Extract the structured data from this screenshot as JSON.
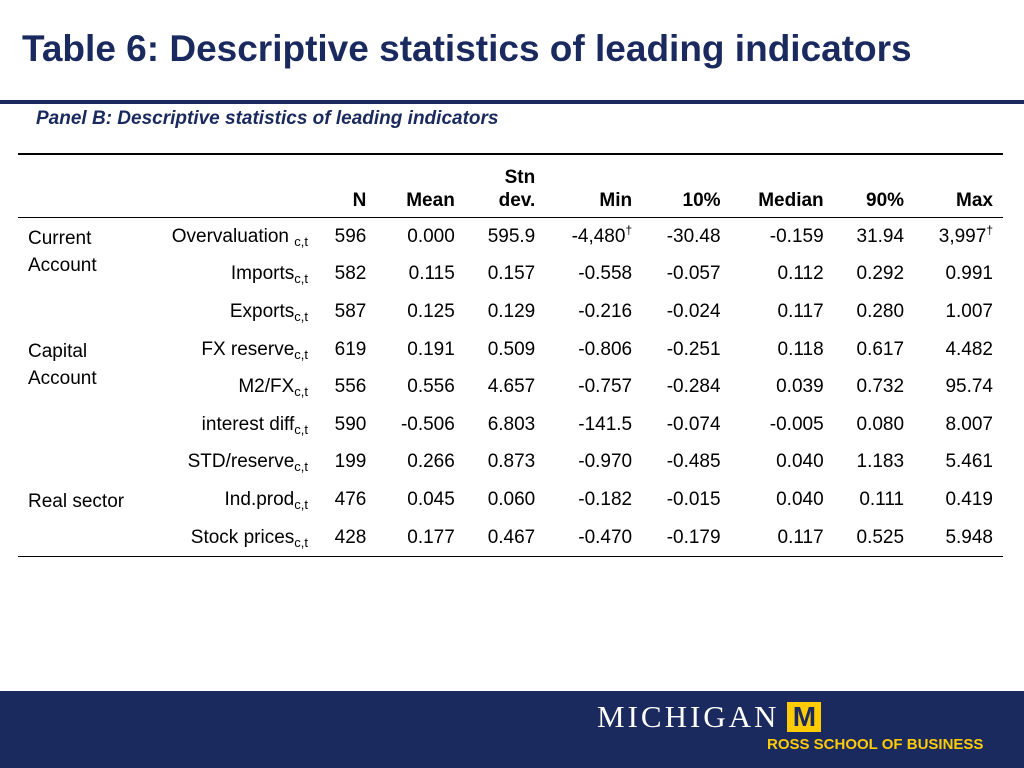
{
  "title": "Table 6: Descriptive statistics of leading indicators",
  "panel_title": "Panel B: Descriptive statistics of leading indicators",
  "columns": {
    "n": "N",
    "mean": "Mean",
    "std_line1": "Stn",
    "std_line2": "dev.",
    "min": "Min",
    "p10": "10%",
    "median": "Median",
    "p90": "90%",
    "max": "Max"
  },
  "groups": {
    "current_account": "Current Account",
    "capital_account": "Capital Account",
    "real_sector": "Real sector"
  },
  "subscript": "c,t",
  "dagger": "†",
  "rows": [
    {
      "indicator": "Overvaluation",
      "n": "596",
      "mean": "0.000",
      "std": "595.9",
      "min": "-4,480",
      "p10": "-30.48",
      "median": "-0.159",
      "p90": "31.94",
      "max": "3,997"
    },
    {
      "indicator": "Imports",
      "n": "582",
      "mean": "0.115",
      "std": "0.157",
      "min": "-0.558",
      "p10": "-0.057",
      "median": "0.112",
      "p90": "0.292",
      "max": "0.991"
    },
    {
      "indicator": "Exports",
      "n": "587",
      "mean": "0.125",
      "std": "0.129",
      "min": "-0.216",
      "p10": "-0.024",
      "median": "0.117",
      "p90": "0.280",
      "max": "1.007"
    },
    {
      "indicator": "FX reserve",
      "n": "619",
      "mean": "0.191",
      "std": "0.509",
      "min": "-0.806",
      "p10": "-0.251",
      "median": "0.118",
      "p90": "0.617",
      "max": "4.482"
    },
    {
      "indicator": "M2/FX",
      "n": "556",
      "mean": "0.556",
      "std": "4.657",
      "min": "-0.757",
      "p10": "-0.284",
      "median": "0.039",
      "p90": "0.732",
      "max": "95.74"
    },
    {
      "indicator": "interest diff",
      "n": "590",
      "mean": "-0.506",
      "std": "6.803",
      "min": "-141.5",
      "p10": "-0.074",
      "median": "-0.005",
      "p90": "0.080",
      "max": "8.007"
    },
    {
      "indicator": "STD/reserve",
      "n": "199",
      "mean": "0.266",
      "std": "0.873",
      "min": "-0.970",
      "p10": "-0.485",
      "median": "0.040",
      "p90": "1.183",
      "max": "5.461"
    },
    {
      "indicator": "Ind.prod",
      "n": "476",
      "mean": "0.045",
      "std": "0.060",
      "min": "-0.182",
      "p10": "-0.015",
      "median": "0.040",
      "p90": "0.111",
      "max": "0.419"
    },
    {
      "indicator": "Stock prices",
      "n": "428",
      "mean": "0.177",
      "std": "0.467",
      "min": "-0.470",
      "p10": "-0.179",
      "median": "0.117",
      "p90": "0.525",
      "max": "5.948"
    }
  ],
  "footer": {
    "university": "MICHIGAN",
    "block_m": "M",
    "school": "ROSS SCHOOL OF BUSINESS"
  },
  "colors": {
    "navy": "#1a2a5e",
    "maize": "#ffcb05"
  }
}
